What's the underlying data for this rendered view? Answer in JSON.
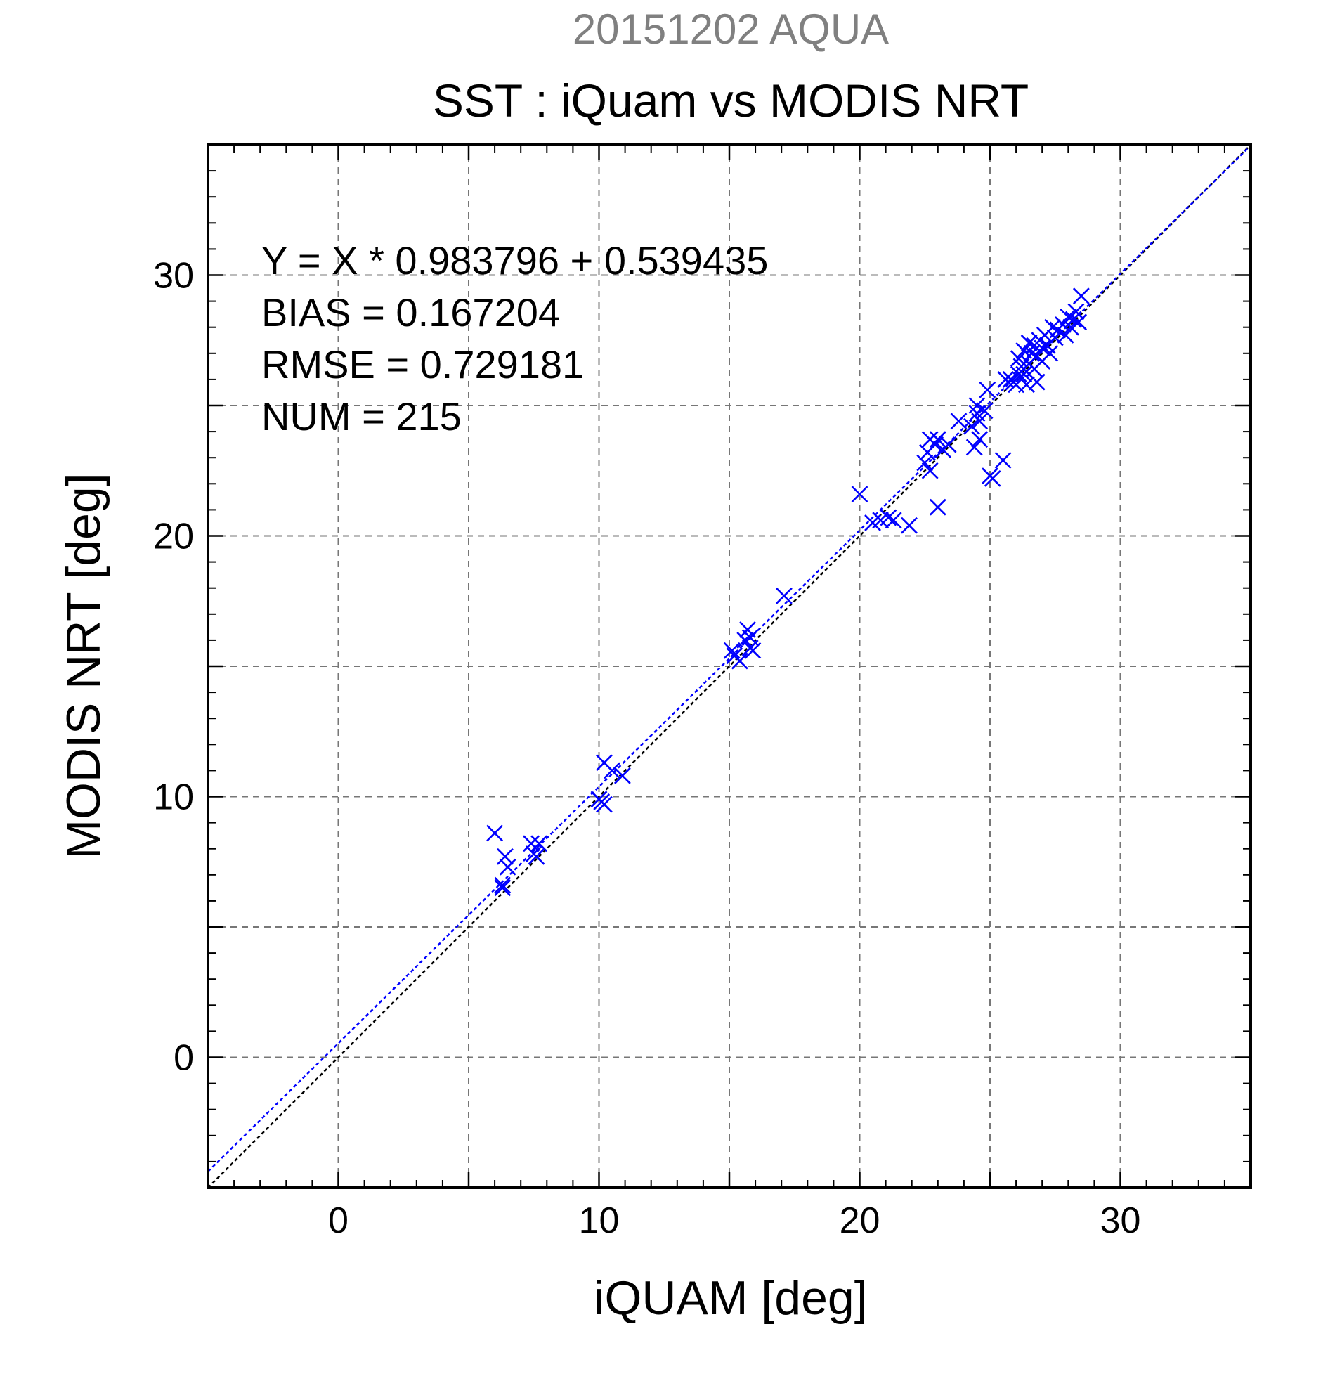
{
  "chart_data": {
    "type": "scatter",
    "title": "SST : iQuam vs MODIS NRT",
    "subtitle": "20151202 AQUA",
    "xlabel": "iQUAM [deg]",
    "ylabel": "MODIS NRT [deg]",
    "xlim": [
      -5,
      35
    ],
    "ylim": [
      -5,
      35
    ],
    "xticks": [
      0,
      10,
      20,
      30
    ],
    "yticks": [
      0,
      10,
      20,
      30
    ],
    "grid": true,
    "annotations": [
      "Y = X * 0.983796 + 0.539435",
      "BIAS = 0.167204",
      "RMSE = 0.729181",
      "NUM = 215"
    ],
    "fit_line": {
      "slope": 0.983796,
      "intercept": 0.539435,
      "color": "#0000ff"
    },
    "identity_line": {
      "slope": 1,
      "intercept": 0,
      "color": "#000000"
    },
    "marker_color": "#0000ff",
    "subtitle_color": "#808080",
    "points": [
      [
        6.0,
        8.6
      ],
      [
        6.3,
        6.5
      ],
      [
        6.3,
        6.6
      ],
      [
        6.4,
        7.7
      ],
      [
        6.5,
        7.3
      ],
      [
        7.4,
        8.2
      ],
      [
        7.5,
        7.8
      ],
      [
        7.6,
        7.7
      ],
      [
        7.7,
        8.2
      ],
      [
        10.0,
        9.9
      ],
      [
        10.1,
        9.8
      ],
      [
        10.2,
        9.7
      ],
      [
        10.2,
        11.3
      ],
      [
        10.5,
        11.0
      ],
      [
        10.9,
        10.8
      ],
      [
        15.1,
        15.6
      ],
      [
        15.2,
        15.4
      ],
      [
        15.4,
        15.2
      ],
      [
        15.6,
        16.0
      ],
      [
        15.7,
        16.4
      ],
      [
        15.8,
        15.7
      ],
      [
        15.8,
        16.1
      ],
      [
        15.9,
        15.6
      ],
      [
        17.1,
        17.7
      ],
      [
        20.0,
        21.6
      ],
      [
        20.5,
        20.5
      ],
      [
        20.8,
        20.6
      ],
      [
        21.1,
        20.7
      ],
      [
        21.3,
        20.6
      ],
      [
        21.9,
        20.4
      ],
      [
        22.5,
        22.8
      ],
      [
        22.6,
        23.2
      ],
      [
        22.7,
        22.5
      ],
      [
        22.7,
        23.7
      ],
      [
        22.9,
        23.5
      ],
      [
        23.0,
        23.7
      ],
      [
        23.0,
        21.1
      ],
      [
        23.2,
        23.3
      ],
      [
        23.4,
        23.5
      ],
      [
        23.8,
        24.4
      ],
      [
        24.3,
        24.2
      ],
      [
        24.4,
        23.4
      ],
      [
        24.5,
        24.7
      ],
      [
        24.5,
        25.0
      ],
      [
        24.6,
        23.7
      ],
      [
        24.6,
        24.4
      ],
      [
        24.8,
        24.8
      ],
      [
        24.9,
        25.6
      ],
      [
        25.0,
        22.3
      ],
      [
        25.1,
        22.2
      ],
      [
        25.5,
        22.9
      ],
      [
        25.6,
        26.0
      ],
      [
        25.8,
        26.0
      ],
      [
        25.9,
        25.9
      ],
      [
        26.0,
        25.8
      ],
      [
        26.1,
        26.2
      ],
      [
        26.1,
        26.8
      ],
      [
        26.2,
        26.5
      ],
      [
        26.3,
        27.1
      ],
      [
        26.3,
        26.2
      ],
      [
        26.4,
        25.8
      ],
      [
        26.5,
        26.6
      ],
      [
        26.5,
        27.4
      ],
      [
        26.6,
        27.0
      ],
      [
        26.7,
        26.4
      ],
      [
        26.7,
        27.3
      ],
      [
        26.8,
        26.9
      ],
      [
        26.8,
        25.9
      ],
      [
        26.9,
        27.5
      ],
      [
        27.0,
        26.7
      ],
      [
        27.0,
        27.2
      ],
      [
        27.1,
        27.7
      ],
      [
        27.2,
        27.3
      ],
      [
        27.3,
        27.0
      ],
      [
        27.4,
        28.0
      ],
      [
        27.5,
        27.6
      ],
      [
        27.6,
        27.9
      ],
      [
        27.8,
        28.1
      ],
      [
        27.9,
        27.7
      ],
      [
        28.0,
        28.4
      ],
      [
        28.1,
        28.0
      ],
      [
        28.2,
        28.3
      ],
      [
        28.3,
        28.6
      ],
      [
        28.4,
        28.2
      ],
      [
        28.5,
        29.2
      ]
    ]
  }
}
